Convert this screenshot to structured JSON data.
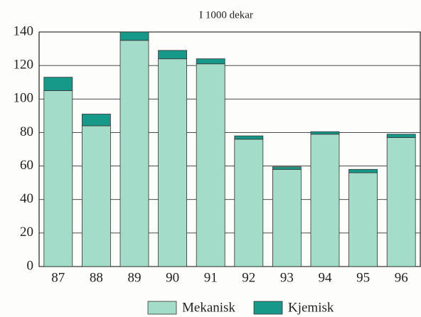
{
  "chart_data": {
    "type": "bar",
    "stacked": true,
    "title": "I 1000 dekar",
    "categories": [
      "87",
      "88",
      "89",
      "90",
      "91",
      "92",
      "93",
      "94",
      "95",
      "96"
    ],
    "series": [
      {
        "name": "Mekanisk",
        "color": "#a3dcc8",
        "values": [
          105,
          84,
          135,
          124,
          121,
          76,
          58,
          79,
          56,
          77
        ]
      },
      {
        "name": "Kjemisk",
        "color": "#17998a",
        "values": [
          8,
          7,
          5,
          5,
          3,
          2,
          1.5,
          1.5,
          2,
          2
        ]
      }
    ],
    "ylim": [
      0,
      140
    ],
    "yticks": [
      0,
      20,
      40,
      60,
      80,
      100,
      120,
      140
    ],
    "grid": true,
    "legend": "bottom"
  }
}
